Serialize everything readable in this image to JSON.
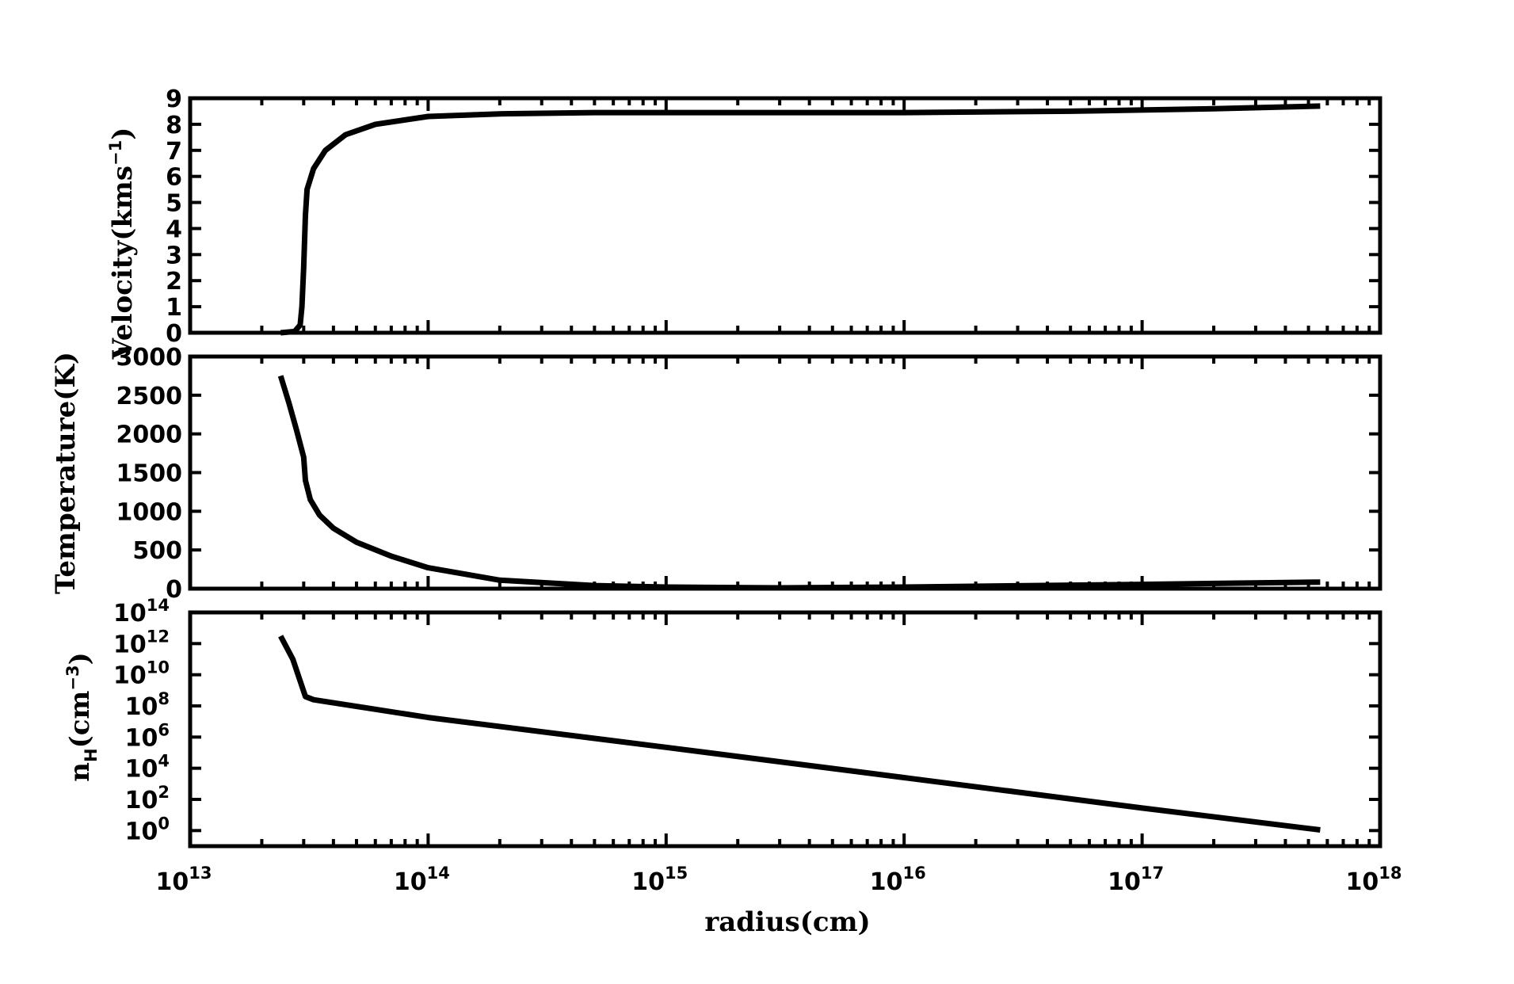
{
  "chart_data": [
    {
      "type": "line",
      "panel": "velocity",
      "ylabel_main": "Velocity",
      "ylabel_unit": "(kms",
      "ylabel_sup": "−1",
      "ylabel_close": ")",
      "xscale": "log",
      "xlim": [
        10000000000000.0,
        1e+18
      ],
      "ylim": [
        0,
        9
      ],
      "yticks": [
        "0",
        "1",
        "2",
        "3",
        "4",
        "5",
        "6",
        "7",
        "8",
        "9"
      ],
      "series": [
        {
          "x": [
            24000000000000.0,
            27500000000000.0,
            29000000000000.0,
            29500000000000.0,
            30000000000000.0,
            30500000000000.0,
            31000000000000.0,
            33000000000000.0,
            37000000000000.0,
            45000000000000.0,
            60000000000000.0,
            100000000000000.0,
            200000000000000.0,
            500000000000000.0,
            1000000000000000.0,
            1e+16,
            5e+16,
            2e+17,
            5.6e+17
          ],
          "y": [
            0,
            0.05,
            0.3,
            1.0,
            2.5,
            4.5,
            5.5,
            6.3,
            7.0,
            7.6,
            8.0,
            8.3,
            8.4,
            8.45,
            8.45,
            8.45,
            8.5,
            8.6,
            8.7
          ]
        }
      ]
    },
    {
      "type": "line",
      "panel": "temperature",
      "ylabel": "Temperature(K)",
      "xscale": "log",
      "xlim": [
        10000000000000.0,
        1e+18
      ],
      "ylim": [
        0,
        3000
      ],
      "yticks": [
        "0",
        "500",
        "1000",
        "1500",
        "2000",
        "2500",
        "3000"
      ],
      "series": [
        {
          "x": [
            24000000000000.0,
            26000000000000.0,
            28000000000000.0,
            30000000000000.0,
            30500000000000.0,
            32000000000000.0,
            35000000000000.0,
            40000000000000.0,
            50000000000000.0,
            70000000000000.0,
            100000000000000.0,
            200000000000000.0,
            500000000000000.0,
            1000000000000000.0,
            3000000000000000.0,
            1e+16,
            1e+17,
            5.6e+17
          ],
          "y": [
            2750,
            2400,
            2050,
            1700,
            1400,
            1150,
            950,
            780,
            600,
            420,
            270,
            110,
            40,
            20,
            10,
            20,
            55,
            85
          ]
        }
      ]
    },
    {
      "type": "line",
      "panel": "density",
      "ylabel_main": "n",
      "ylabel_sub": "H",
      "ylabel_unit": "(cm",
      "ylabel_sup": "−3",
      "ylabel_close": ")",
      "xscale": "log",
      "yscale": "log",
      "xlim": [
        10000000000000.0,
        1e+18
      ],
      "ylim": [
        0.1,
        100000000000000.0
      ],
      "yticks": [
        {
          "base": "10",
          "exp": "0"
        },
        {
          "base": "10",
          "exp": "2"
        },
        {
          "base": "10",
          "exp": "4"
        },
        {
          "base": "10",
          "exp": "6"
        },
        {
          "base": "10",
          "exp": "8"
        },
        {
          "base": "10",
          "exp": "10"
        },
        {
          "base": "10",
          "exp": "12"
        },
        {
          "base": "10",
          "exp": "14"
        }
      ],
      "series": [
        {
          "x": [
            24000000000000.0,
            27000000000000.0,
            30500000000000.0,
            33000000000000.0,
            100000000000000.0,
            1000000000000000.0,
            1e+16,
            1e+17,
            5.6e+17
          ],
          "y": [
            3000000000000.0,
            100000000000.0,
            400000000.0,
            250000000.0,
            18000000.0,
            220000.0,
            2500.0,
            28.0,
            1.1
          ]
        }
      ]
    }
  ],
  "xaxis": {
    "label": "radius(cm)",
    "ticks": [
      {
        "base": "10",
        "exp": "13"
      },
      {
        "base": "10",
        "exp": "14"
      },
      {
        "base": "10",
        "exp": "15"
      },
      {
        "base": "10",
        "exp": "16"
      },
      {
        "base": "10",
        "exp": "17"
      },
      {
        "base": "10",
        "exp": "18"
      }
    ]
  }
}
